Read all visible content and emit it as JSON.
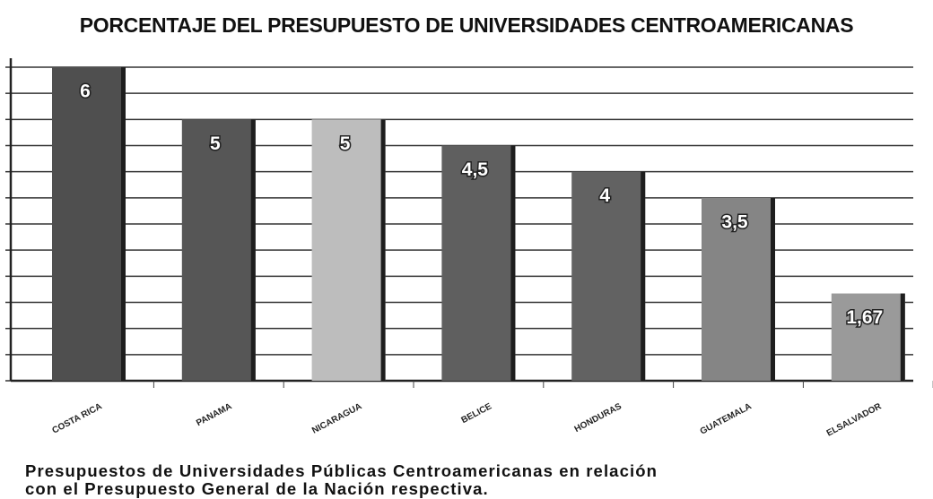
{
  "chart_data": {
    "type": "bar",
    "title": "PORCENTAJE DEL PRESUPUESTO DE UNIVERSIDADES CENTROAMERICANAS",
    "categories": [
      "COSTA RICA",
      "PANAMA",
      "NICARAGUA",
      "BELICE",
      "HONDURAS",
      "GUATEMALA",
      "ELSALVADOR"
    ],
    "values": [
      6,
      5,
      5,
      4.5,
      4,
      3.5,
      1.67
    ],
    "value_labels": [
      "6",
      "5",
      "5",
      "4,5",
      "4",
      "3,5",
      "1,67"
    ],
    "colors": [
      "#4f4f4f",
      "#565656",
      "#bdbdbd",
      "#5f5f5f",
      "#626262",
      "#858585",
      "#9a9a9a"
    ],
    "ylim": [
      0,
      6
    ],
    "yticks": [
      0,
      0.5,
      1,
      1.5,
      2,
      2.5,
      3,
      3.5,
      4,
      4.5,
      5,
      5.5,
      6
    ],
    "grid": true,
    "caption": [
      "Presupuestos de Universidades Públicas Centroamericanas en relación",
      "con el Presupuesto General de la Nación respectiva."
    ]
  }
}
